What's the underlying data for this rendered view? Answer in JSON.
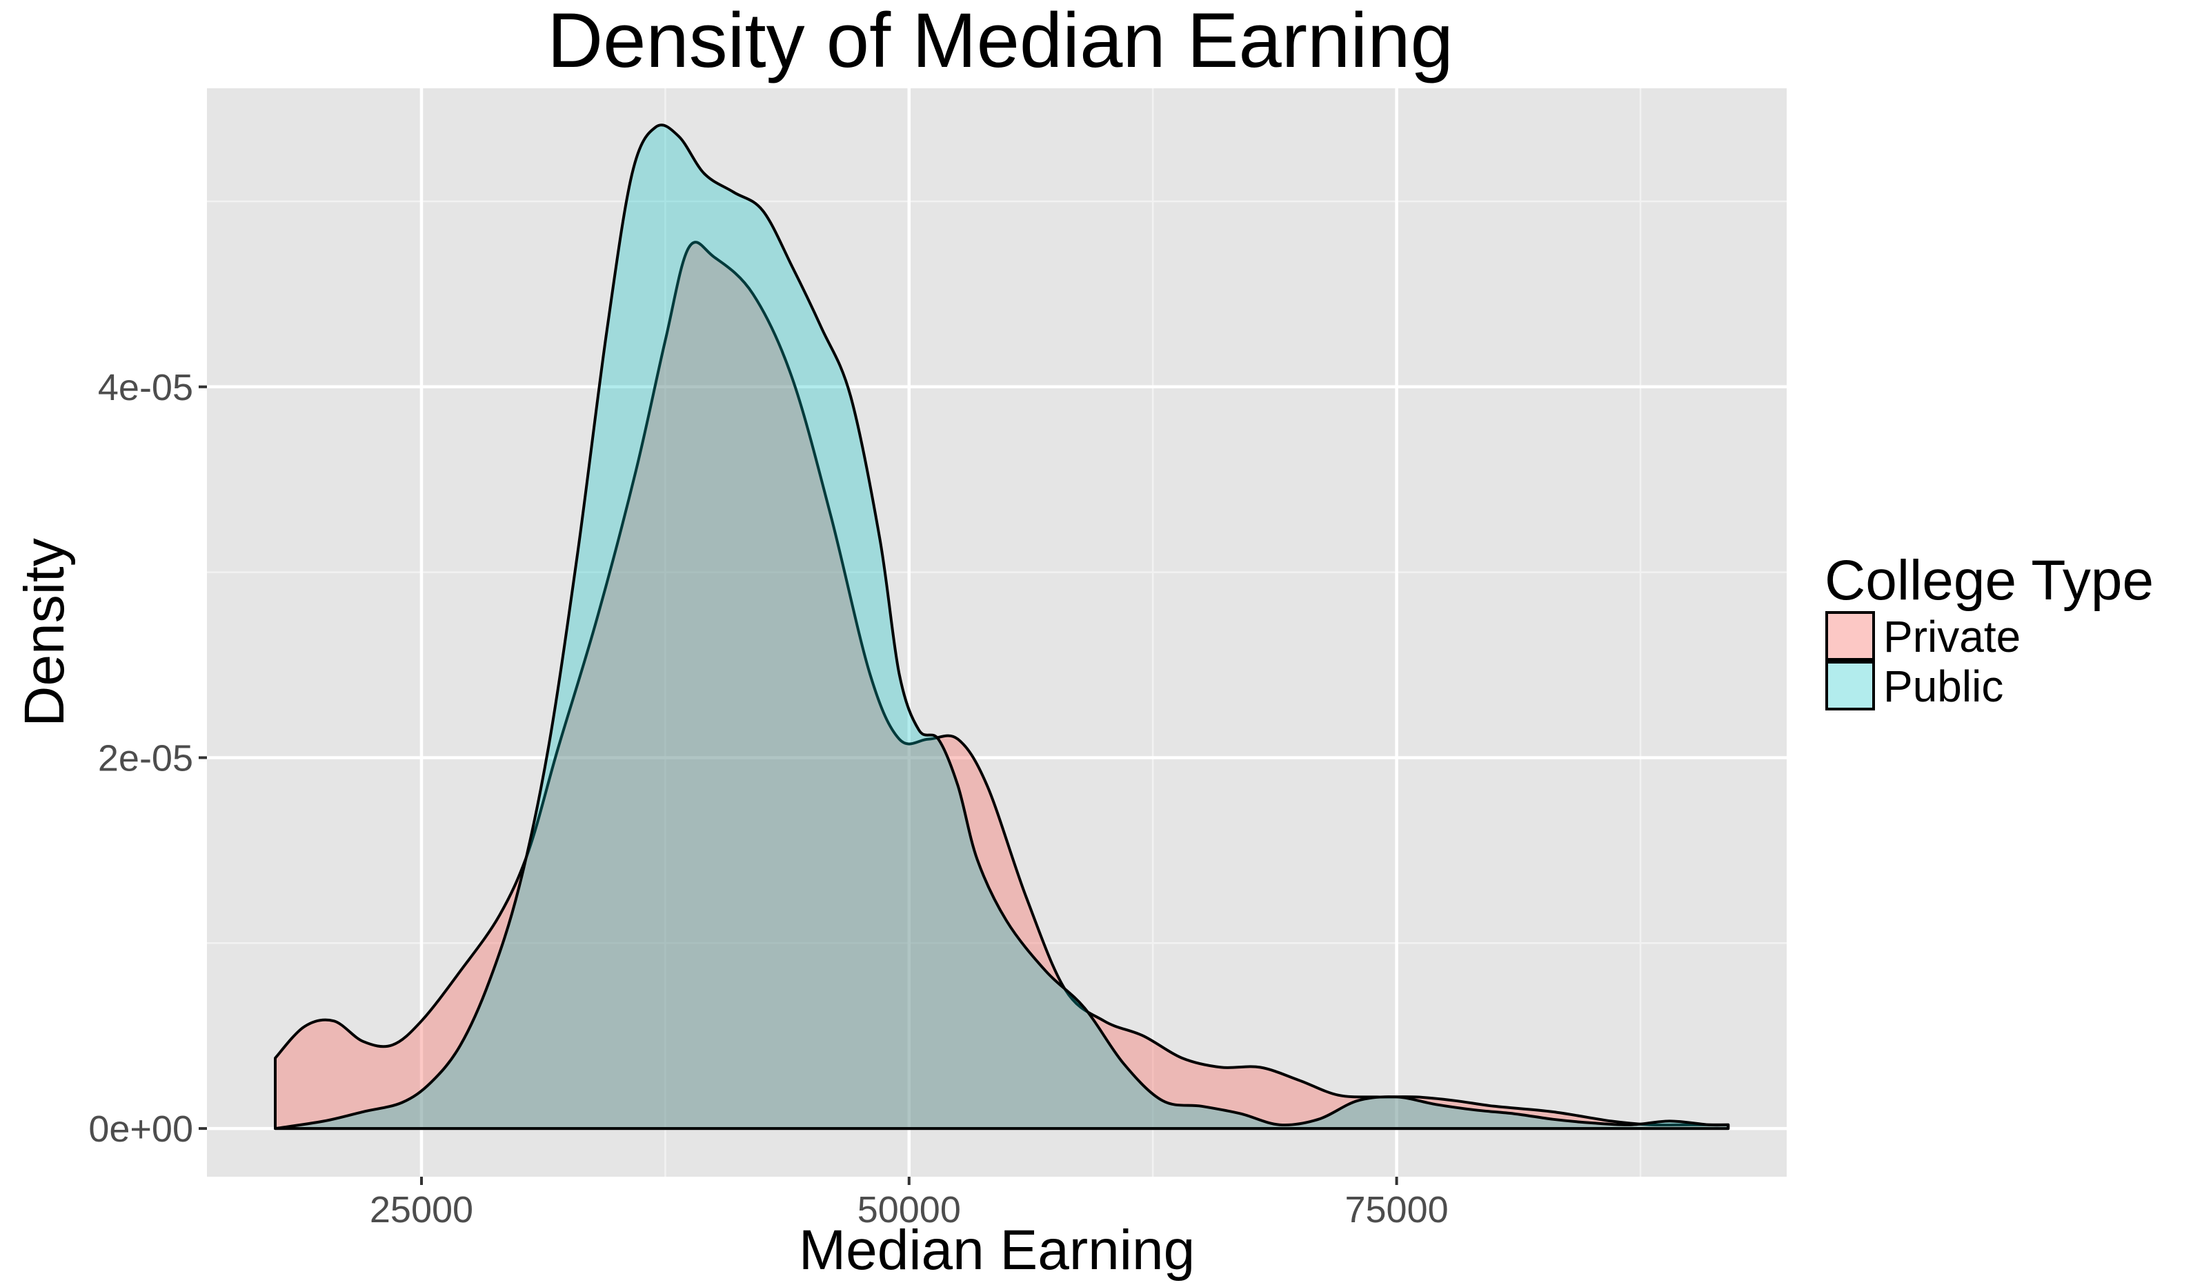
{
  "chart_data": {
    "type": "area",
    "subtype": "density",
    "title": "Density of Median Earning",
    "xlabel": "Median Earning",
    "ylabel": "Density",
    "xlim": [
      14000,
      95000
    ],
    "ylim": [
      -2.6e-06,
      5.61e-05
    ],
    "x_ticks": [
      25000,
      50000,
      75000
    ],
    "x_tick_labels": [
      "25000",
      "50000",
      "75000"
    ],
    "y_ticks": [
      0,
      2e-05,
      4e-05
    ],
    "y_tick_labels": [
      "0e+00",
      "2e-05",
      "4e-05"
    ],
    "grid": true,
    "panel_background": "#e5e5e5",
    "legend": {
      "title": "College Type",
      "position": "right",
      "entries": [
        "Private",
        "Public"
      ]
    },
    "series": [
      {
        "name": "Private",
        "color": "#f8766d",
        "opacity": 0.4,
        "points": [
          [
            17500,
            3.8e-06
          ],
          [
            19000,
            5.5e-06
          ],
          [
            20500,
            5.8e-06
          ],
          [
            22000,
            4.7e-06
          ],
          [
            23500,
            4.5e-06
          ],
          [
            25000,
            5.8e-06
          ],
          [
            27000,
            8.5e-06
          ],
          [
            29000,
            1.15e-05
          ],
          [
            30500,
            1.5e-05
          ],
          [
            32000,
            2.05e-05
          ],
          [
            34000,
            2.75e-05
          ],
          [
            36000,
            3.55e-05
          ],
          [
            37500,
            4.25e-05
          ],
          [
            38700,
            4.75e-05
          ],
          [
            40000,
            4.7e-05
          ],
          [
            42000,
            4.5e-05
          ],
          [
            44000,
            4.05e-05
          ],
          [
            46000,
            3.3e-05
          ],
          [
            48000,
            2.45e-05
          ],
          [
            49500,
            2.1e-05
          ],
          [
            51000,
            2.1e-05
          ],
          [
            52500,
            2.1e-05
          ],
          [
            54000,
            1.85e-05
          ],
          [
            56000,
            1.25e-05
          ],
          [
            58000,
            7.5e-06
          ],
          [
            60000,
            5.8e-06
          ],
          [
            62000,
            5e-06
          ],
          [
            64000,
            3.8e-06
          ],
          [
            66000,
            3.3e-06
          ],
          [
            68000,
            3.3e-06
          ],
          [
            70000,
            2.6e-06
          ],
          [
            72000,
            1.8e-06
          ],
          [
            74000,
            1.7e-06
          ],
          [
            76000,
            1.7e-06
          ],
          [
            78000,
            1.5e-06
          ],
          [
            80000,
            1.2e-06
          ],
          [
            83000,
            9e-07
          ],
          [
            86000,
            4e-07
          ],
          [
            88000,
            2e-07
          ],
          [
            90000,
            2e-07
          ],
          [
            92000,
            2e-07
          ]
        ]
      },
      {
        "name": "Public",
        "color": "#00bfc4",
        "opacity": 0.3,
        "points": [
          [
            17500,
            0.0
          ],
          [
            20000,
            4e-07
          ],
          [
            22000,
            9e-07
          ],
          [
            24000,
            1.4e-06
          ],
          [
            25500,
            2.5e-06
          ],
          [
            27000,
            4.5e-06
          ],
          [
            28500,
            8e-06
          ],
          [
            30000,
            1.3e-05
          ],
          [
            31500,
            2.05e-05
          ],
          [
            33000,
            3.1e-05
          ],
          [
            34500,
            4.3e-05
          ],
          [
            35800,
            5.15e-05
          ],
          [
            37000,
            5.4e-05
          ],
          [
            38200,
            5.35e-05
          ],
          [
            39500,
            5.15e-05
          ],
          [
            41000,
            5.05e-05
          ],
          [
            42500,
            4.95e-05
          ],
          [
            44000,
            4.65e-05
          ],
          [
            45500,
            4.32e-05
          ],
          [
            47000,
            3.95e-05
          ],
          [
            48500,
            3.18e-05
          ],
          [
            49500,
            2.45e-05
          ],
          [
            50500,
            2.15e-05
          ],
          [
            51500,
            2.1e-05
          ],
          [
            52500,
            1.85e-05
          ],
          [
            53500,
            1.45e-05
          ],
          [
            55000,
            1.12e-05
          ],
          [
            57000,
            8.5e-06
          ],
          [
            59000,
            6.5e-06
          ],
          [
            61000,
            3.5e-06
          ],
          [
            63000,
            1.5e-06
          ],
          [
            65000,
            1.2e-06
          ],
          [
            67000,
            8e-07
          ],
          [
            69000,
            2e-07
          ],
          [
            71000,
            5e-07
          ],
          [
            73000,
            1.5e-06
          ],
          [
            75000,
            1.7e-06
          ],
          [
            77000,
            1.3e-06
          ],
          [
            79000,
            1e-06
          ],
          [
            81000,
            8e-07
          ],
          [
            83000,
            5e-07
          ],
          [
            85000,
            3e-07
          ],
          [
            87000,
            2e-07
          ],
          [
            89000,
            4e-07
          ],
          [
            91000,
            2e-07
          ],
          [
            92000,
            2e-07
          ]
        ]
      }
    ]
  }
}
